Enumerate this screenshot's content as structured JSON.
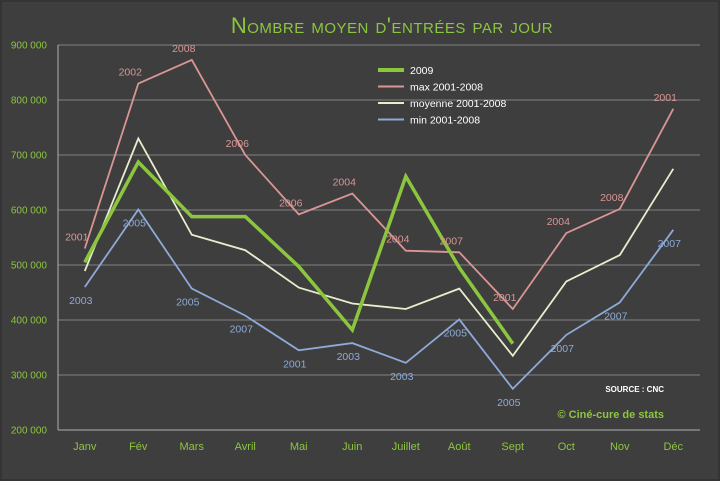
{
  "chart_data": {
    "type": "line",
    "title": "Nombre moyen d'entrées par jour",
    "categories": [
      "Janv",
      "Fév",
      "Mars",
      "Avril",
      "Mai",
      "Juin",
      "Juillet",
      "Août",
      "Sept",
      "Oct",
      "Nov",
      "Déc"
    ],
    "ylim": [
      200000,
      900000
    ],
    "yticks": [
      200000,
      300000,
      400000,
      500000,
      600000,
      700000,
      800000,
      900000
    ],
    "ytick_labels": [
      "200 000",
      "300 000",
      "400 000",
      "500 000",
      "600 000",
      "700 000",
      "800 000",
      "900 000"
    ],
    "grid": true,
    "series": [
      {
        "name": "2009",
        "color": "#8cc63f",
        "values": [
          505000,
          687000,
          588000,
          588000,
          497000,
          382000,
          661000,
          495000,
          357000,
          null,
          null,
          null
        ],
        "annotations": []
      },
      {
        "name": "max 2001-2008",
        "color": "#d99694",
        "values": [
          530000,
          830000,
          873000,
          700000,
          592000,
          630000,
          526000,
          523000,
          420000,
          558000,
          602000,
          784000
        ],
        "annotations": [
          "2001",
          "2002",
          "2008",
          "2006",
          "2006",
          "2004",
          "2004",
          "2007",
          "2001",
          "2004",
          "2008",
          "2001"
        ]
      },
      {
        "name": "moyenne 2001-2008",
        "color": "#e6eecb",
        "values": [
          489000,
          730000,
          555000,
          527000,
          459000,
          430000,
          420000,
          457000,
          335000,
          470000,
          518000,
          675000
        ],
        "annotations": []
      },
      {
        "name": "min 2001-2008",
        "color": "#8eaad8",
        "values": [
          460000,
          601000,
          457000,
          408000,
          345000,
          358000,
          322000,
          401000,
          275000,
          373000,
          432000,
          564000
        ],
        "annotations": [
          "2003",
          "2005",
          "2005",
          "2007",
          "2001",
          "2003",
          "2003",
          "2005",
          "2005",
          "2007",
          "2007",
          "2007"
        ]
      }
    ],
    "legend_position": "top-center",
    "source": "SOURCE : CNC",
    "credit": "© Ciné-cure de stats"
  },
  "colors": {
    "background": "#3e3e3e",
    "title": "#8cc63f",
    "axis_text": "#8cc63f",
    "grid": "#9a9a9a",
    "footer": "#ffffff",
    "credit": "#8cc63f"
  }
}
